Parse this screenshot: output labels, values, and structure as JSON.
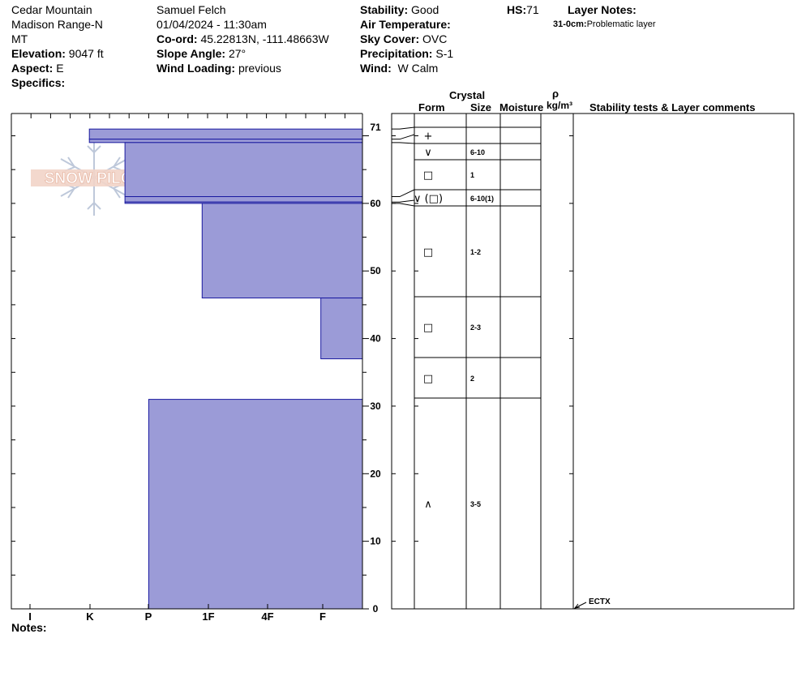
{
  "header": {
    "location_line1": "Cedar Mountain",
    "location_line2": "Madison Range-N",
    "location_line3": "MT",
    "elevation_label": "Elevation:",
    "elevation_value": "9047 ft",
    "aspect_label": "Aspect:",
    "aspect_value": "E",
    "specifics_label": "Specifics:",
    "observer": "Samuel Felch",
    "datetime": "01/04/2024 - 11:30am",
    "coord_label": "Co-ord:",
    "coord_value": "45.22813N, -111.48663W",
    "slope_label": "Slope Angle:",
    "slope_value": "27°",
    "wind_loading_label": "Wind Loading:",
    "wind_loading_value": "previous",
    "stability_label": "Stability:",
    "stability_value": "Good",
    "air_temp_label": "Air Temperature:",
    "sky_label": "Sky Cover:",
    "sky_value": "OVC",
    "precip_label": "Precipitation:",
    "precip_value": "S-1",
    "wind_label": "Wind:",
    "wind_value": "W Calm",
    "hs_label": "HS:",
    "hs_value": "71",
    "layer_notes_label": "Layer Notes:",
    "layer_note_range": "31-0cm:",
    "layer_note_text": "Problematic layer"
  },
  "logo_text": "SNOW PILOT",
  "notes_label": "Notes:",
  "table_headers": {
    "crystal": "Crystal",
    "form": "Form",
    "size": "Size",
    "moisture": "Moisture",
    "rho": "ρ",
    "density_unit": "kg/m³",
    "stability_comments": "Stability tests & Layer comments"
  },
  "stability_test": "ECTX",
  "chart_data": {
    "type": "bar",
    "orientation": "horizontal",
    "ylim": [
      0,
      71
    ],
    "y_ticks": [
      0,
      10,
      20,
      30,
      40,
      50,
      60,
      71
    ],
    "x_categories": [
      "I",
      "K",
      "P",
      "1F",
      "4F",
      "F"
    ],
    "hardness_scale_note": "F",
    "layers": [
      {
        "top": 71,
        "bottom": 69.5,
        "hardness_index": 1.0,
        "form": "+",
        "size": ""
      },
      {
        "top": 69.5,
        "bottom": 69,
        "hardness_index": 1.0,
        "form": "",
        "size": ""
      },
      {
        "top": 69,
        "bottom": 61,
        "hardness_index": 1.6,
        "form": "∨",
        "size": "6-10"
      },
      {
        "top": 61,
        "bottom": 60.2,
        "hardness_index": 1.6,
        "form": "□",
        "size": "1"
      },
      {
        "top": 60.2,
        "bottom": 60,
        "hardness_index": 1.6,
        "form": "∨ (□)",
        "size": "6-10(1)"
      },
      {
        "top": 60,
        "bottom": 46,
        "hardness_index": 2.9,
        "form": "□",
        "size": "1-2"
      },
      {
        "top": 46,
        "bottom": 37,
        "hardness_index": 4.9,
        "form": "□",
        "size": "2-3"
      },
      {
        "top": 37,
        "bottom": 31,
        "hardness_index": 5.9,
        "form": "□",
        "size": "2"
      },
      {
        "top": 31,
        "bottom": 0,
        "hardness_index": 2.0,
        "form": "∧",
        "size": "3-5"
      }
    ],
    "table_rows": [
      {
        "top": 71,
        "bottom": 69,
        "form": "+",
        "size": ""
      },
      {
        "top": 69,
        "bottom": 66,
        "form": "∨",
        "size": "6-10"
      },
      {
        "top": 66,
        "bottom": 61,
        "form": "□",
        "size": "1"
      },
      {
        "top": 61,
        "bottom": 60,
        "form": "∨ (□)",
        "size": "6-10(1)"
      },
      {
        "top": 60,
        "bottom": 46,
        "form": "□",
        "size": "1-2"
      },
      {
        "top": 46,
        "bottom": 37,
        "form": "□",
        "size": "2-3"
      },
      {
        "top": 37,
        "bottom": 31,
        "form": "□",
        "size": "2"
      },
      {
        "top": 31,
        "bottom": 0,
        "form": "∧",
        "size": "3-5"
      }
    ],
    "colors": {
      "bar_fill": "#9b9bd7",
      "bar_stroke": "#1a1aa0"
    }
  }
}
